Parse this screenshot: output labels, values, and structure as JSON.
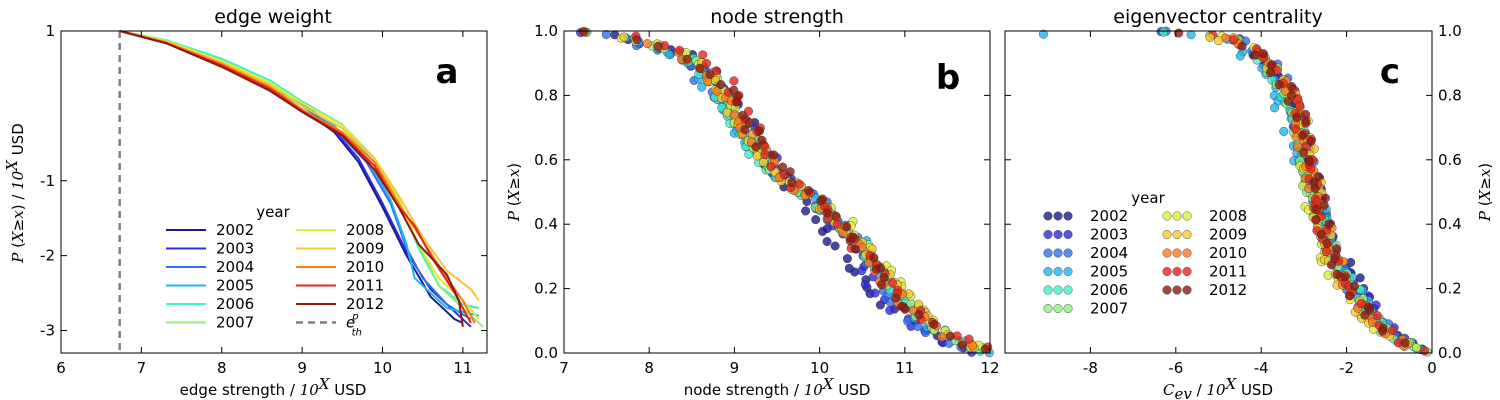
{
  "chart_data": [
    {
      "type": "line",
      "title": "edge weight",
      "panel_label": "a",
      "xlabel": "edge strength / 10^X USD",
      "ylabel": "P (X≥x) / 10^X USD",
      "xlim": [
        6,
        11.3
      ],
      "ylim": [
        -3.3,
        1
      ],
      "xticks": [
        6,
        7,
        8,
        9,
        10,
        11
      ],
      "yticks": [
        1,
        -1,
        -2,
        -3
      ],
      "ytick_labels": [
        "1",
        "-1",
        "-2",
        "-3"
      ],
      "threshold": {
        "x": 6.73,
        "label": "e_th^p",
        "color": "#808080"
      },
      "legend": {
        "title": "year",
        "position": "bottom-center"
      },
      "series": [
        {
          "name": "2002",
          "color": "#1a1a8c",
          "points": [
            [
              6.73,
              1.0
            ],
            [
              7.3,
              0.85
            ],
            [
              8.0,
              0.55
            ],
            [
              8.6,
              0.25
            ],
            [
              9.0,
              -0.05
            ],
            [
              9.4,
              -0.35
            ],
            [
              9.7,
              -0.75
            ],
            [
              10.0,
              -1.35
            ],
            [
              10.3,
              -2.0
            ],
            [
              10.6,
              -2.55
            ],
            [
              10.9,
              -2.85
            ],
            [
              11.0,
              -2.9
            ]
          ]
        },
        {
          "name": "2003",
          "color": "#2d2ae0",
          "points": [
            [
              6.73,
              1.0
            ],
            [
              7.3,
              0.84
            ],
            [
              8.0,
              0.55
            ],
            [
              8.6,
              0.22
            ],
            [
              9.0,
              -0.05
            ],
            [
              9.4,
              -0.33
            ],
            [
              9.7,
              -0.7
            ],
            [
              10.0,
              -1.3
            ],
            [
              10.3,
              -1.95
            ],
            [
              10.6,
              -2.45
            ],
            [
              10.9,
              -2.75
            ],
            [
              11.1,
              -2.95
            ]
          ]
        },
        {
          "name": "2004",
          "color": "#2f6ef5",
          "points": [
            [
              6.73,
              1.0
            ],
            [
              7.3,
              0.86
            ],
            [
              8.0,
              0.57
            ],
            [
              8.6,
              0.27
            ],
            [
              9.0,
              0.0
            ],
            [
              9.4,
              -0.3
            ],
            [
              9.8,
              -0.75
            ],
            [
              10.1,
              -1.3
            ],
            [
              10.3,
              -1.9
            ],
            [
              10.5,
              -2.3
            ],
            [
              10.8,
              -2.65
            ],
            [
              11.1,
              -2.85
            ]
          ]
        },
        {
          "name": "2005",
          "color": "#22b4ef",
          "points": [
            [
              6.73,
              1.0
            ],
            [
              7.3,
              0.87
            ],
            [
              8.0,
              0.6
            ],
            [
              8.6,
              0.3
            ],
            [
              9.0,
              0.03
            ],
            [
              9.4,
              -0.27
            ],
            [
              9.8,
              -0.7
            ],
            [
              10.1,
              -1.25
            ],
            [
              10.3,
              -1.85
            ],
            [
              10.4,
              -2.3
            ],
            [
              10.8,
              -2.7
            ],
            [
              11.2,
              -2.8
            ]
          ]
        },
        {
          "name": "2006",
          "color": "#3ff0c8",
          "points": [
            [
              6.73,
              1.0
            ],
            [
              7.3,
              0.88
            ],
            [
              8.0,
              0.63
            ],
            [
              8.6,
              0.34
            ],
            [
              9.0,
              0.06
            ],
            [
              9.5,
              -0.25
            ],
            [
              9.9,
              -0.7
            ],
            [
              10.2,
              -1.25
            ],
            [
              10.45,
              -1.9
            ],
            [
              10.7,
              -2.4
            ],
            [
              11.0,
              -2.65
            ],
            [
              11.2,
              -2.7
            ]
          ]
        },
        {
          "name": "2007",
          "color": "#8fef7e",
          "points": [
            [
              6.73,
              1.0
            ],
            [
              7.3,
              0.87
            ],
            [
              8.0,
              0.6
            ],
            [
              8.6,
              0.3
            ],
            [
              9.0,
              0.0
            ],
            [
              9.5,
              -0.3
            ],
            [
              9.9,
              -0.75
            ],
            [
              10.2,
              -1.3
            ],
            [
              10.5,
              -1.95
            ],
            [
              10.7,
              -2.4
            ],
            [
              11.0,
              -2.7
            ],
            [
              11.25,
              -2.95
            ]
          ]
        },
        {
          "name": "2008",
          "color": "#dcef3a",
          "points": [
            [
              6.73,
              1.0
            ],
            [
              7.3,
              0.87
            ],
            [
              8.0,
              0.6
            ],
            [
              8.6,
              0.31
            ],
            [
              9.0,
              0.04
            ],
            [
              9.5,
              -0.26
            ],
            [
              9.9,
              -0.7
            ],
            [
              10.2,
              -1.25
            ],
            [
              10.45,
              -1.85
            ],
            [
              10.7,
              -2.3
            ],
            [
              11.0,
              -2.6
            ],
            [
              11.2,
              -2.85
            ]
          ]
        },
        {
          "name": "2009",
          "color": "#f5c92a",
          "points": [
            [
              6.73,
              1.0
            ],
            [
              7.3,
              0.86
            ],
            [
              8.0,
              0.58
            ],
            [
              8.6,
              0.28
            ],
            [
              9.0,
              0.0
            ],
            [
              9.5,
              -0.3
            ],
            [
              9.9,
              -0.7
            ],
            [
              10.2,
              -1.2
            ],
            [
              10.5,
              -1.75
            ],
            [
              10.8,
              -2.2
            ],
            [
              11.1,
              -2.45
            ],
            [
              11.2,
              -2.6
            ]
          ]
        },
        {
          "name": "2010",
          "color": "#fb7a1a",
          "points": [
            [
              6.73,
              1.0
            ],
            [
              7.3,
              0.85
            ],
            [
              8.0,
              0.56
            ],
            [
              8.6,
              0.25
            ],
            [
              9.0,
              -0.05
            ],
            [
              9.5,
              -0.35
            ],
            [
              9.9,
              -0.75
            ],
            [
              10.2,
              -1.3
            ],
            [
              10.5,
              -1.8
            ],
            [
              10.8,
              -2.3
            ],
            [
              11.0,
              -2.6
            ],
            [
              11.15,
              -2.9
            ]
          ]
        },
        {
          "name": "2011",
          "color": "#e8221c",
          "points": [
            [
              6.73,
              1.0
            ],
            [
              7.3,
              0.84
            ],
            [
              8.0,
              0.54
            ],
            [
              8.6,
              0.23
            ],
            [
              9.0,
              -0.07
            ],
            [
              9.5,
              -0.38
            ],
            [
              9.9,
              -0.8
            ],
            [
              10.2,
              -1.35
            ],
            [
              10.4,
              -1.6
            ],
            [
              10.6,
              -2.0
            ],
            [
              10.9,
              -2.5
            ],
            [
              11.1,
              -2.9
            ]
          ]
        },
        {
          "name": "2012",
          "color": "#8c1a12",
          "points": [
            [
              6.73,
              1.0
            ],
            [
              7.3,
              0.84
            ],
            [
              8.0,
              0.52
            ],
            [
              8.6,
              0.2
            ],
            [
              9.0,
              -0.08
            ],
            [
              9.5,
              -0.4
            ],
            [
              9.9,
              -0.85
            ],
            [
              10.2,
              -1.35
            ],
            [
              10.45,
              -1.85
            ],
            [
              10.8,
              -2.25
            ],
            [
              10.95,
              -2.6
            ],
            [
              11.0,
              -2.95
            ]
          ]
        }
      ]
    },
    {
      "type": "scatter",
      "title": "node strength",
      "panel_label": "b",
      "xlabel": "node strength / 10^X USD",
      "ylabel": "P (X≥x)",
      "xlim": [
        7,
        12
      ],
      "ylim": [
        0,
        1
      ],
      "xticks": [
        7,
        8,
        9,
        10,
        11,
        12
      ],
      "yticks": [
        0.0,
        0.2,
        0.4,
        0.6,
        0.8,
        1.0
      ],
      "ytick_labels": [
        "0.0",
        "0.2",
        "0.4",
        "0.6",
        "0.8",
        "1.0"
      ],
      "curve": [
        [
          7.2,
          1.0
        ],
        [
          7.6,
          0.99
        ],
        [
          8.0,
          0.96
        ],
        [
          8.4,
          0.93
        ],
        [
          8.7,
          0.87
        ],
        [
          8.9,
          0.8
        ],
        [
          9.05,
          0.73
        ],
        [
          9.2,
          0.66
        ],
        [
          9.45,
          0.58
        ],
        [
          9.7,
          0.52
        ],
        [
          10.0,
          0.46
        ],
        [
          10.3,
          0.39
        ],
        [
          10.55,
          0.31
        ],
        [
          10.8,
          0.22
        ],
        [
          11.1,
          0.13
        ],
        [
          11.4,
          0.07
        ],
        [
          11.7,
          0.03
        ],
        [
          12.0,
          0.0
        ]
      ],
      "series": [
        {
          "name": "2002",
          "color": "#1a1a8c",
          "shift": -0.3
        },
        {
          "name": "2003",
          "color": "#2d2ae0",
          "shift": -0.25
        },
        {
          "name": "2004",
          "color": "#2f6ef5",
          "shift": -0.2
        },
        {
          "name": "2005",
          "color": "#22b4ef",
          "shift": -0.15
        },
        {
          "name": "2006",
          "color": "#3ff0c8",
          "shift": -0.1
        },
        {
          "name": "2007",
          "color": "#8fef7e",
          "shift": 0.0
        },
        {
          "name": "2008",
          "color": "#dcef3a",
          "shift": 0.1
        },
        {
          "name": "2009",
          "color": "#f5c92a",
          "shift": 0.05
        },
        {
          "name": "2010",
          "color": "#fb7a1a",
          "shift": -0.05
        },
        {
          "name": "2011",
          "color": "#e8221c",
          "shift": 0.15
        },
        {
          "name": "2012",
          "color": "#8c1a12",
          "shift": 0.08
        }
      ]
    },
    {
      "type": "scatter",
      "title": "eigenvector centrality",
      "panel_label": "c",
      "xlabel": "C_ev / 10^X USD",
      "ylabel": "P (X≥x)",
      "xlim": [
        -10,
        0
      ],
      "ylim": [
        0,
        1
      ],
      "xticks": [
        -8,
        -6,
        -4,
        -2,
        0
      ],
      "yticks": [
        0.0,
        0.2,
        0.4,
        0.6,
        0.8,
        1.0
      ],
      "ytick_labels": [
        "0.0",
        "0.2",
        "0.4",
        "0.6",
        "0.8",
        "1.0"
      ],
      "curve": [
        [
          -6.5,
          1.0
        ],
        [
          -5.5,
          0.99
        ],
        [
          -4.7,
          0.98
        ],
        [
          -4.2,
          0.94
        ],
        [
          -3.8,
          0.89
        ],
        [
          -3.4,
          0.82
        ],
        [
          -3.1,
          0.72
        ],
        [
          -2.9,
          0.6
        ],
        [
          -2.7,
          0.48
        ],
        [
          -2.5,
          0.38
        ],
        [
          -2.2,
          0.27
        ],
        [
          -1.8,
          0.18
        ],
        [
          -1.4,
          0.11
        ],
        [
          -1.0,
          0.06
        ],
        [
          -0.5,
          0.02
        ],
        [
          0.0,
          0.0
        ]
      ],
      "outliers": [
        [
          -9.1,
          0.99
        ],
        [
          -5.2,
          0.98
        ],
        [
          -5.0,
          0.97
        ]
      ],
      "legend": {
        "title": "year",
        "position": "center-left"
      },
      "series": [
        {
          "name": "2002",
          "color": "#1a1a8c",
          "shift": 0.2
        },
        {
          "name": "2003",
          "color": "#2d2ae0",
          "shift": 0.15
        },
        {
          "name": "2004",
          "color": "#2f6ef5",
          "shift": 0.1
        },
        {
          "name": "2005",
          "color": "#22b4ef",
          "shift": -0.3
        },
        {
          "name": "2006",
          "color": "#3ff0c8",
          "shift": -0.1
        },
        {
          "name": "2007",
          "color": "#8fef7e",
          "shift": -0.05
        },
        {
          "name": "2008",
          "color": "#dcef3a",
          "shift": -0.2
        },
        {
          "name": "2009",
          "color": "#f5c92a",
          "shift": -0.15
        },
        {
          "name": "2010",
          "color": "#fb7a1a",
          "shift": 0.0
        },
        {
          "name": "2011",
          "color": "#e8221c",
          "shift": 0.05
        },
        {
          "name": "2012",
          "color": "#8c1a12",
          "shift": 0.1
        }
      ]
    }
  ]
}
